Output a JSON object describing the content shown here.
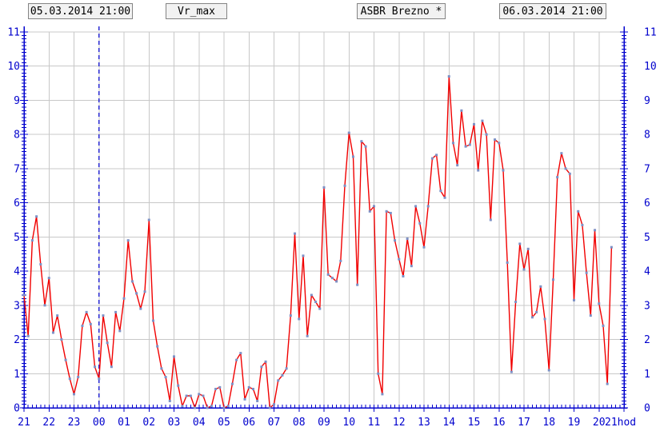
{
  "header": {
    "start_datetime": "05.03.2014 21:00",
    "series_name": "Vr_max",
    "station": "ASBR Brezno *",
    "end_datetime": "06.03.2014 21:00"
  },
  "chart_data": {
    "type": "line",
    "title": "Vr_max — ASBR Brezno",
    "xlabel": "hod",
    "ylabel": "",
    "ylim": [
      0,
      11
    ],
    "y_tick_labels": [
      "0",
      "1",
      "2",
      "3",
      "4",
      "5",
      "6",
      "7",
      "8",
      "9",
      "10",
      "11"
    ],
    "x_tick_labels": [
      "21",
      "22",
      "23",
      "00",
      "01",
      "02",
      "03",
      "04",
      "05",
      "06",
      "07",
      "08",
      "09",
      "10",
      "11",
      "12",
      "13",
      "14",
      "15",
      "16",
      "17",
      "18",
      "19",
      "20",
      "21hod"
    ],
    "grid": true,
    "legend_position": "none",
    "midnight_divider_hour_index": 3,
    "sample_step_minutes": 10,
    "series": [
      {
        "name": "Vr_max",
        "start": "21:00",
        "values": [
          3.3,
          2.1,
          4.9,
          5.6,
          4.2,
          3.0,
          3.8,
          2.2,
          2.7,
          2.0,
          1.4,
          0.85,
          0.4,
          0.9,
          2.4,
          2.8,
          2.45,
          1.2,
          0.85,
          2.7,
          1.9,
          1.2,
          2.8,
          2.25,
          3.2,
          4.9,
          3.7,
          3.35,
          2.9,
          3.4,
          5.5,
          2.55,
          1.8,
          1.15,
          0.9,
          0.2,
          1.5,
          0.65,
          0.05,
          0.35,
          0.35,
          0.0,
          0.4,
          0.35,
          0.0,
          0.05,
          0.55,
          0.6,
          0.0,
          0.05,
          0.7,
          1.4,
          1.6,
          0.25,
          0.6,
          0.55,
          0.2,
          1.2,
          1.35,
          0.0,
          0.1,
          0.8,
          0.95,
          1.15,
          2.7,
          5.1,
          2.6,
          4.45,
          2.1,
          3.3,
          3.1,
          2.9,
          6.45,
          3.9,
          3.8,
          3.7,
          4.3,
          6.5,
          8.05,
          7.35,
          3.6,
          7.8,
          7.65,
          5.75,
          5.9,
          1.0,
          0.4,
          5.75,
          5.7,
          4.9,
          4.35,
          3.85,
          4.95,
          4.15,
          5.9,
          5.4,
          4.7,
          5.9,
          7.3,
          7.4,
          6.35,
          6.15,
          9.7,
          7.75,
          7.1,
          8.7,
          7.65,
          7.7,
          8.3,
          6.95,
          8.4,
          8.0,
          5.5,
          7.85,
          7.75,
          6.95,
          4.25,
          1.05,
          3.1,
          4.8,
          4.05,
          4.65,
          2.65,
          2.8,
          3.55,
          2.6,
          1.1,
          3.75,
          6.75,
          7.45,
          7.0,
          6.85,
          3.15,
          5.75,
          5.35,
          3.95,
          2.7,
          5.2,
          3.05,
          2.4,
          0.7,
          4.7
        ]
      }
    ],
    "colors": {
      "line": "#f10000",
      "marker": "#7d90c5",
      "axis": "#0000cd",
      "axis_text": "#0000cd",
      "grid": "#c8c8c8",
      "midnight_line": "#1a1ad0",
      "box_bg": "#f2f2f2",
      "box_border": "#848484"
    }
  }
}
